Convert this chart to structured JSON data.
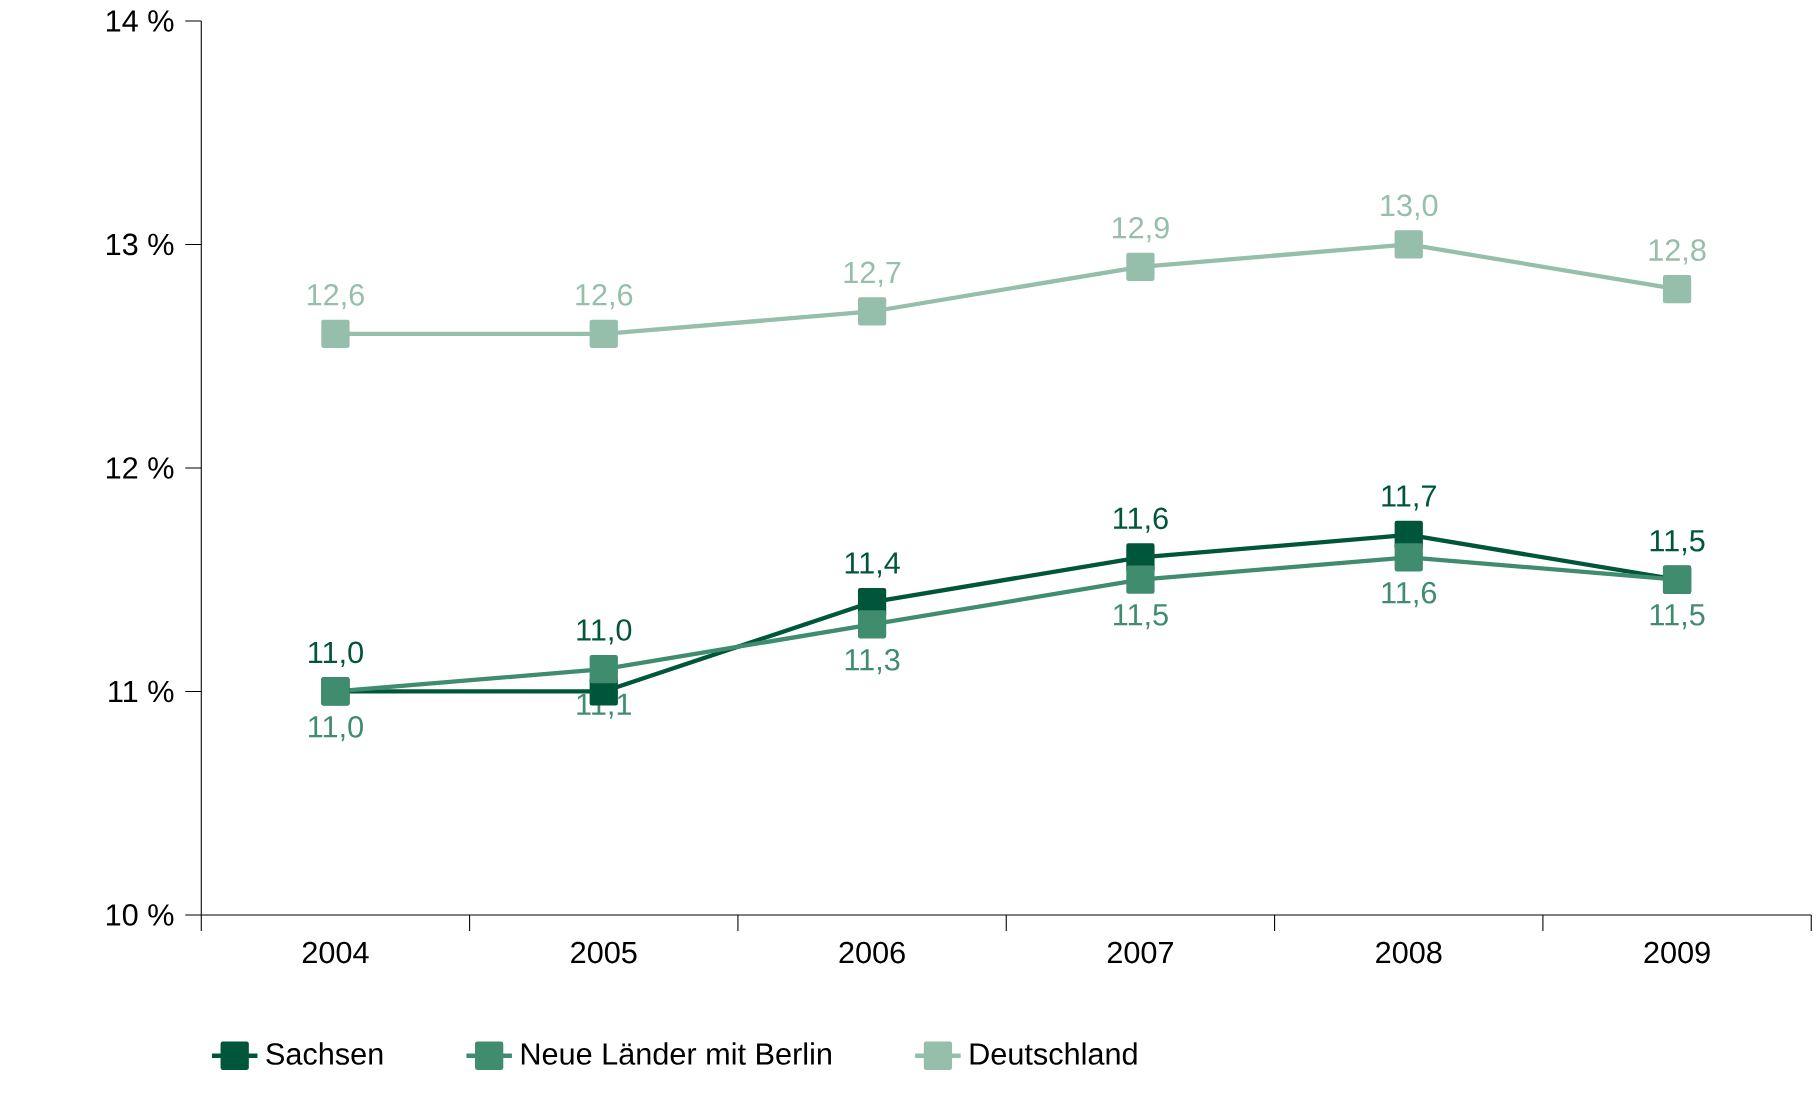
{
  "chart_data": {
    "type": "line",
    "categories": [
      "2004",
      "2005",
      "2006",
      "2007",
      "2008",
      "2009"
    ],
    "series": [
      {
        "name": "Sachsen",
        "color": "#00563a",
        "values": [
          11.0,
          11.0,
          11.4,
          11.6,
          11.7,
          11.5
        ],
        "value_labels": [
          "11,0",
          "11,0",
          "11,4",
          "11,6",
          "11,7",
          "11,5"
        ]
      },
      {
        "name": "Neue Länder mit Berlin",
        "color": "#3f8c6f",
        "values": [
          11.0,
          11.1,
          11.3,
          11.5,
          11.6,
          11.5
        ],
        "value_labels": [
          "11,0",
          "11,1",
          "11,3",
          "11,5",
          "11,6",
          "11,5"
        ]
      },
      {
        "name": "Deutschland",
        "color": "#95bfab",
        "values": [
          12.6,
          12.6,
          12.7,
          12.9,
          13.0,
          12.8
        ],
        "value_labels": [
          "12,6",
          "12,6",
          "12,7",
          "12,9",
          "13,0",
          "12,8"
        ]
      }
    ],
    "ylim": [
      10,
      14
    ],
    "yticks": [
      {
        "value": 10,
        "label": "10 %"
      },
      {
        "value": 11,
        "label": "11 %"
      },
      {
        "value": 12,
        "label": "12 %"
      },
      {
        "value": 13,
        "label": "13 %"
      },
      {
        "value": 14,
        "label": "14 %"
      }
    ],
    "grid": false,
    "legend": "bottom",
    "marker": "square",
    "line_style": "solid"
  }
}
